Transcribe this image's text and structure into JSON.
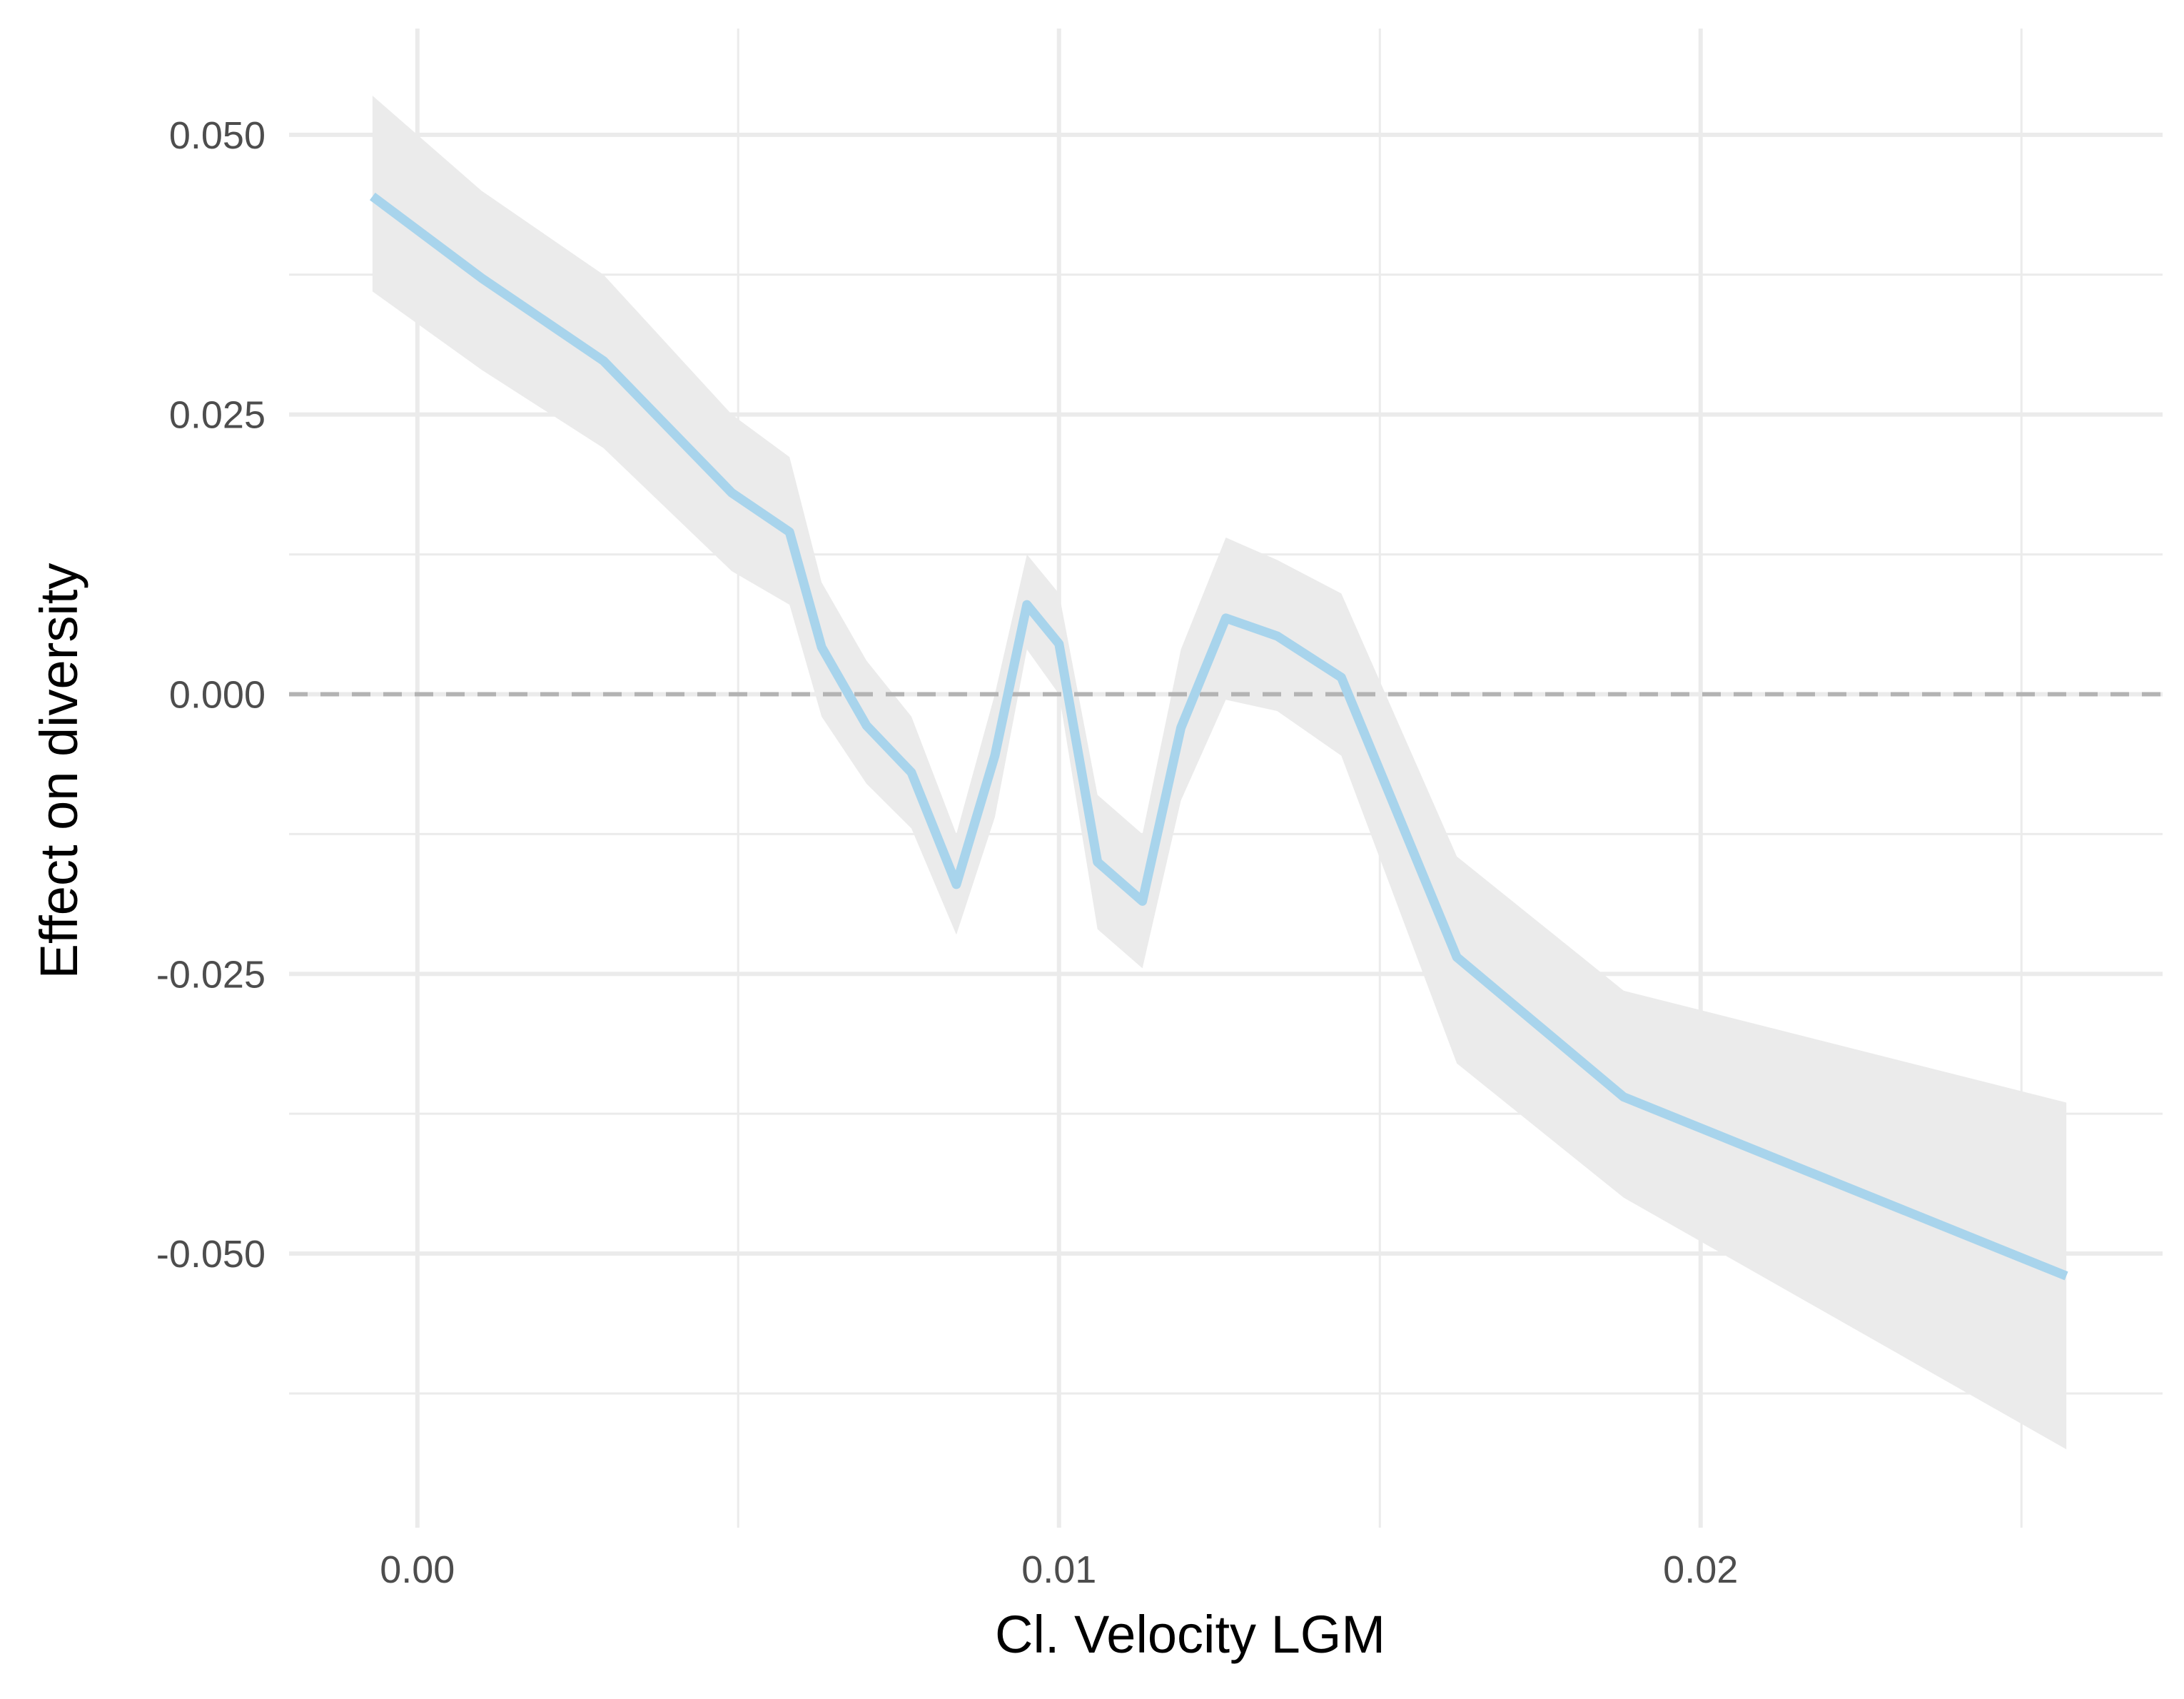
{
  "chart_data": {
    "type": "line",
    "title": "",
    "xlabel": "Cl. Velocity LGM",
    "ylabel": "Effect on diversity",
    "xlim": [
      -0.002,
      0.0272
    ],
    "ylim": [
      -0.0745,
      0.0595
    ],
    "x_ticks": [
      0.0,
      0.01,
      0.02
    ],
    "x_tick_labels": [
      "0.00",
      "0.01",
      "0.02"
    ],
    "x_minor_ticks": [
      0.005,
      0.015,
      0.025
    ],
    "y_ticks": [
      0.05,
      0.025,
      0.0,
      -0.025,
      -0.05
    ],
    "y_tick_labels": [
      "0.050",
      "0.025",
      "0.000",
      "-0.025",
      "-0.050"
    ],
    "y_minor_ticks": [
      0.0375,
      0.0125,
      -0.0125,
      -0.0375,
      -0.0625
    ],
    "grid": true,
    "reference_line": {
      "y": 0.0,
      "style": "dashed",
      "color": "#b3b3b3"
    },
    "colors": {
      "line": "#a8d4ec",
      "ribbon": "#ebebeb",
      "grid": "#ebebeb",
      "background": "#ffffff"
    },
    "series": [
      {
        "x": [
          -0.0007,
          0.001,
          0.0029,
          0.0049,
          0.0058,
          0.0063,
          0.007,
          0.0077,
          0.0084,
          0.009,
          0.0095,
          0.01,
          0.0106,
          0.0113,
          0.0119,
          0.0126,
          0.0134,
          0.0144,
          0.0162,
          0.0188,
          0.0257
        ],
        "y": [
          0.0445,
          0.0372,
          0.0298,
          0.018,
          0.0145,
          0.0042,
          -0.0028,
          -0.007,
          -0.017,
          -0.0055,
          0.008,
          0.0045,
          -0.015,
          -0.0185,
          -0.003,
          0.0068,
          0.0052,
          0.0015,
          -0.0235,
          -0.036,
          -0.052
        ],
        "lower": [
          0.036,
          0.029,
          0.022,
          0.011,
          0.008,
          -0.002,
          -0.008,
          -0.012,
          -0.0215,
          -0.011,
          0.004,
          0.0,
          -0.021,
          -0.0245,
          -0.0095,
          -0.0005,
          -0.0015,
          -0.0055,
          -0.033,
          -0.045,
          -0.0675
        ],
        "upper": [
          0.0535,
          0.045,
          0.0375,
          0.025,
          0.0212,
          0.01,
          0.003,
          -0.002,
          -0.0125,
          0.0,
          0.0125,
          0.009,
          -0.009,
          -0.0125,
          0.004,
          0.014,
          0.012,
          0.009,
          -0.0145,
          -0.0265,
          -0.0365
        ]
      }
    ]
  }
}
